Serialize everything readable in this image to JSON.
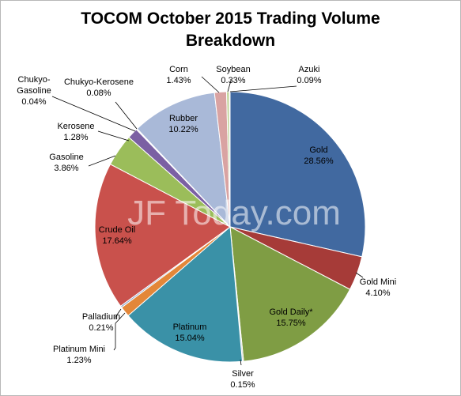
{
  "chart_data": {
    "type": "pie",
    "title_line1": "TOCOM October 2015 Trading Volume",
    "title_line2": "Breakdown",
    "watermark": "JF Today.com",
    "slices": [
      {
        "name": "Gold",
        "value": 28.56,
        "pct": "28.56%",
        "color": "#4169a0"
      },
      {
        "name": "Gold Mini",
        "value": 4.1,
        "pct": "4.10%",
        "color": "#a63b38"
      },
      {
        "name": "Gold Daily*",
        "value": 15.75,
        "pct": "15.75%",
        "color": "#7f9d44"
      },
      {
        "name": "Silver",
        "value": 0.15,
        "pct": "0.15%",
        "color": "#c9c9c9"
      },
      {
        "name": "Platinum",
        "value": 15.04,
        "pct": "15.04%",
        "color": "#3a91a7"
      },
      {
        "name": "Platinum Mini",
        "value": 1.23,
        "pct": "1.23%",
        "color": "#e38739"
      },
      {
        "name": "Palladium",
        "value": 0.21,
        "pct": "0.21%",
        "color": "#8ea5cc"
      },
      {
        "name": "Crude Oil",
        "value": 17.64,
        "pct": "17.64%",
        "color": "#c9514c"
      },
      {
        "name": "Gasoline",
        "value": 3.86,
        "pct": "3.86%",
        "color": "#9bbd5a"
      },
      {
        "name": "Kerosene",
        "value": 1.28,
        "pct": "1.28%",
        "color": "#7b60a3"
      },
      {
        "name": "Chukyo-Gasoline",
        "value": 0.04,
        "pct": "0.04%",
        "color": "#4aa7c2"
      },
      {
        "name": "Chukyo-Kerosene",
        "value": 0.08,
        "pct": "0.08%",
        "color": "#f2a04f"
      },
      {
        "name": "Rubber",
        "value": 10.22,
        "pct": "10.22%",
        "color": "#a9b9d8"
      },
      {
        "name": "Corn",
        "value": 1.43,
        "pct": "1.43%",
        "color": "#d9a3a2"
      },
      {
        "name": "Soybean",
        "value": 0.33,
        "pct": "0.33%",
        "color": "#c2d69b"
      },
      {
        "name": "Azuki",
        "value": 0.09,
        "pct": "0.09%",
        "color": "#b3a2c7"
      }
    ]
  }
}
